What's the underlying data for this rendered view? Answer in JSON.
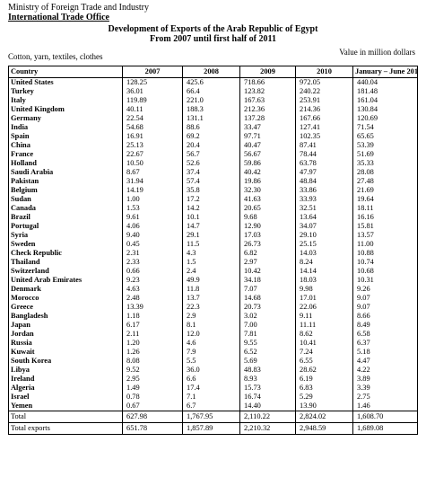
{
  "header": {
    "ministry": "Ministry of Foreign Trade and Industry",
    "office": "International Trade Office",
    "title": "Development of Exports of the Arab Republic of Egypt",
    "period": "From 2007 until first half of 2011",
    "category": "Cotton, yarn, textiles, clothes",
    "unit": "Value in million dollars"
  },
  "table": {
    "columns": [
      "Country",
      "2007",
      "2008",
      "2009",
      "2010",
      "January – June 2011"
    ],
    "rows": [
      [
        "United States",
        "128.25",
        "425.6",
        "718.66",
        "972.05",
        "440.04"
      ],
      [
        "Turkey",
        "36.01",
        "66.4",
        "123.82",
        "240.22",
        "181.48"
      ],
      [
        "Italy",
        "119.89",
        "221.0",
        "167.63",
        "253.91",
        "161.04"
      ],
      [
        "United Kingdom",
        "40.11",
        "188.3",
        "212.36",
        "214.36",
        "130.84"
      ],
      [
        "Germany",
        "22.54",
        "131.1",
        "137.28",
        "167.66",
        "120.69"
      ],
      [
        "India",
        "54.68",
        "88.6",
        "33.47",
        "127.41",
        "71.54"
      ],
      [
        "Spain",
        "16.91",
        "69.2",
        "97.71",
        "102.35",
        "65.65"
      ],
      [
        "China",
        "25.13",
        "20.4",
        "40.47",
        "87.41",
        "53.39"
      ],
      [
        "France",
        "22.67",
        "56.7",
        "56.67",
        "78.44",
        "51.69"
      ],
      [
        "Holland",
        "10.50",
        "52.6",
        "59.86",
        "63.78",
        "35.33"
      ],
      [
        "Saudi Arabia",
        "8.67",
        "37.4",
        "40.42",
        "47.97",
        "28.08"
      ],
      [
        "Pakistan",
        "31.94",
        "57.4",
        "19.86",
        "48.84",
        "27.48"
      ],
      [
        "Belgium",
        "14.19",
        "35.8",
        "32.30",
        "33.86",
        "21.69"
      ],
      [
        "Sudan",
        "1.00",
        "17.2",
        "41.63",
        "33.93",
        "19.64"
      ],
      [
        "Canada",
        "1.53",
        "14.2",
        "20.65",
        "32.51",
        "18.11"
      ],
      [
        "Brazil",
        "9.61",
        "10.1",
        "9.68",
        "13.64",
        "16.16"
      ],
      [
        "Portugal",
        "4.06",
        "14.7",
        "12.90",
        "34.07",
        "15.81"
      ],
      [
        "Syria",
        "9.40",
        "29.1",
        "17.03",
        "29.10",
        "13.57"
      ],
      [
        "Sweden",
        "0.45",
        "11.5",
        "26.73",
        "25.15",
        "11.00"
      ],
      [
        "Check Republic",
        "2.31",
        "4.3",
        "6.82",
        "14.03",
        "10.88"
      ],
      [
        "Thailand",
        "2.33",
        "1.5",
        "2.97",
        "8.24",
        "10.74"
      ],
      [
        "Switzerland",
        "0.66",
        "2.4",
        "10.42",
        "14.14",
        "10.68"
      ],
      [
        "United Arab Emirates",
        "9.23",
        "49.9",
        "34.18",
        "18.03",
        "10.31"
      ],
      [
        "Denmark",
        "4.63",
        "11.8",
        "7.07",
        "9.98",
        "9.26"
      ],
      [
        "Morocco",
        "2.48",
        "13.7",
        "14.68",
        "17.01",
        "9.07"
      ],
      [
        "Greece",
        "13.39",
        "22.3",
        "20.73",
        "22.06",
        "9.07"
      ],
      [
        "Bangladesh",
        "1.18",
        "2.9",
        "3.02",
        "9.11",
        "8.66"
      ],
      [
        "Japan",
        "6.17",
        "8.1",
        "7.00",
        "11.11",
        "8.49"
      ],
      [
        "Jordan",
        "2.11",
        "12.0",
        "7.81",
        "8.62",
        "6.58"
      ],
      [
        "Russia",
        "1.20",
        "4.6",
        "9.55",
        "10.41",
        "6.37"
      ],
      [
        "Kuwait",
        "1.26",
        "7.9",
        "6.52",
        "7.24",
        "5.18"
      ],
      [
        "South Korea",
        "8.08",
        "5.5",
        "5.69",
        "6.55",
        "4.47"
      ],
      [
        "Libya",
        "9.52",
        "36.0",
        "48.83",
        "28.62",
        "4.22"
      ],
      [
        "Ireland",
        "2.95",
        "6.6",
        "8.93",
        "6.19",
        "3.89"
      ],
      [
        "Algeria",
        "1.49",
        "17.4",
        "15.73",
        "6.83",
        "3.39"
      ],
      [
        "Israel",
        "0.78",
        "7.1",
        "16.74",
        "5.29",
        "2.75"
      ],
      [
        "Yemen",
        "0.67",
        "6.7",
        "14.40",
        "13.90",
        "1.46"
      ]
    ],
    "total": [
      "Total",
      "627.98",
      "1,767.95",
      "2,110.22",
      "2,824.02",
      "1,608.70"
    ],
    "total_exports": [
      "Total exports",
      "651.78",
      "1,857.89",
      "2,210.32",
      "2,948.59",
      "1,689.08"
    ]
  }
}
